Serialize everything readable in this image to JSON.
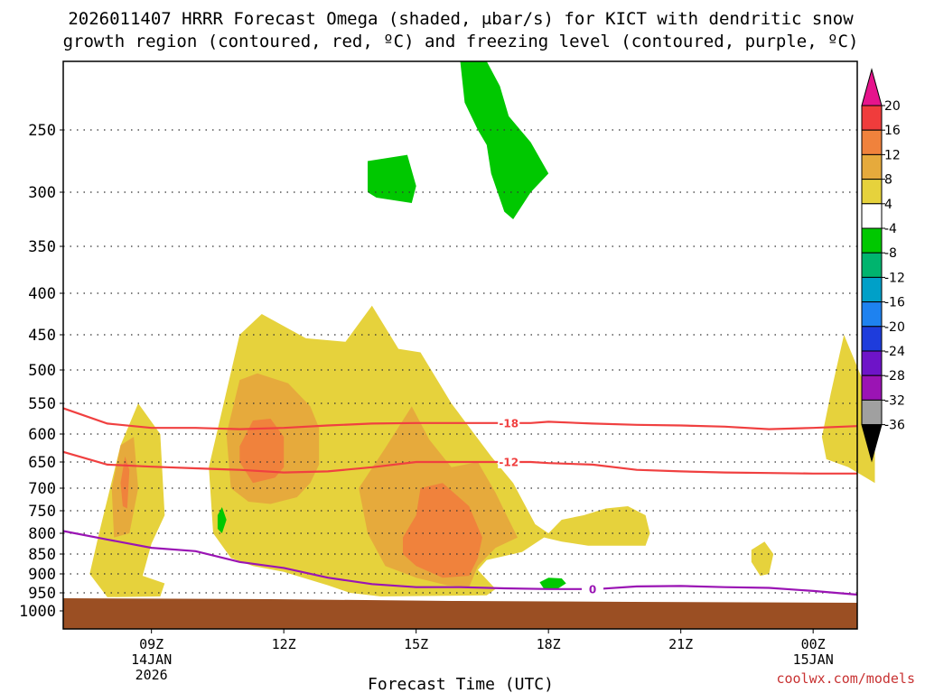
{
  "chart_data": {
    "type": "time-height cross section",
    "title_line1": "2026011407 HRRR Forecast Omega (shaded, μbar/s) for KICT with dendritic snow",
    "title_line2": "growth region (contoured, red, ºC) and freezing level (contoured, purple, ºC)",
    "xlabel": "Forecast Time (UTC)",
    "credit": "coolwx.com/models",
    "y_ticks": [
      250,
      300,
      350,
      400,
      450,
      500,
      550,
      600,
      650,
      700,
      750,
      800,
      850,
      900,
      950,
      1000
    ],
    "x_ticks": [
      {
        "t": 9,
        "label": "09Z",
        "sub1": "14JAN",
        "sub2": "2026"
      },
      {
        "t": 12,
        "label": "12Z",
        "sub1": "",
        "sub2": ""
      },
      {
        "t": 15,
        "label": "15Z",
        "sub1": "",
        "sub2": ""
      },
      {
        "t": 18,
        "label": "18Z",
        "sub1": "",
        "sub2": ""
      },
      {
        "t": 21,
        "label": "21Z",
        "sub1": "",
        "sub2": ""
      },
      {
        "t": 24,
        "label": "00Z",
        "sub1": "15JAN",
        "sub2": ""
      }
    ],
    "colorbar": {
      "labels": [
        "20",
        "16",
        "12",
        "8",
        "4",
        "-4",
        "-8",
        "-12",
        "-16",
        "-20",
        "-24",
        "-28",
        "-32",
        "-36"
      ],
      "colors": [
        "#f03c3c",
        "#f0823c",
        "#e6aa3c",
        "#e6d23c",
        "#ffffff",
        "#00c800",
        "#00b46e",
        "#00a0c8",
        "#1e82f0",
        "#1e3cdc",
        "#6e14c8",
        "#9b14b4",
        "#a0a0a0"
      ],
      "top_arrow_color": "#e6148c",
      "bottom_arrow_color": "#000000"
    },
    "contours": [
      {
        "label": "-18",
        "color": "#f04040",
        "points": [
          [
            7,
            558
          ],
          [
            8,
            583
          ],
          [
            9,
            590
          ],
          [
            10,
            590
          ],
          [
            11,
            592
          ],
          [
            12,
            590
          ],
          [
            13,
            586
          ],
          [
            14,
            583
          ],
          [
            15,
            582
          ],
          [
            16,
            582
          ],
          [
            16.6,
            582
          ],
          [
            17.6,
            582
          ],
          [
            18,
            580
          ],
          [
            19,
            583
          ],
          [
            20,
            585
          ],
          [
            21,
            586
          ],
          [
            22,
            588
          ],
          [
            23,
            592
          ],
          [
            24,
            590
          ],
          [
            25,
            587
          ]
        ]
      },
      {
        "label": "-12",
        "color": "#f04040",
        "points": [
          [
            7,
            632
          ],
          [
            8,
            655
          ],
          [
            9,
            659
          ],
          [
            10,
            662
          ],
          [
            11,
            665
          ],
          [
            12,
            670
          ],
          [
            13,
            668
          ],
          [
            14,
            660
          ],
          [
            15,
            650
          ],
          [
            16,
            650
          ],
          [
            16.6,
            650
          ],
          [
            17.6,
            650
          ],
          [
            18,
            652
          ],
          [
            19,
            655
          ],
          [
            20,
            665
          ],
          [
            21,
            668
          ],
          [
            22,
            670
          ],
          [
            23,
            671
          ],
          [
            24,
            672
          ],
          [
            25,
            672
          ]
        ]
      },
      {
        "label": "0",
        "color": "#9a14b4",
        "points": [
          [
            7,
            795
          ],
          [
            8,
            815
          ],
          [
            9,
            835
          ],
          [
            10,
            843
          ],
          [
            11,
            870
          ],
          [
            12,
            885
          ],
          [
            13,
            910
          ],
          [
            14,
            927
          ],
          [
            15,
            935
          ],
          [
            16,
            935
          ],
          [
            17,
            938
          ],
          [
            18,
            940
          ],
          [
            18.9,
            940
          ],
          [
            19.1,
            940
          ],
          [
            20,
            933
          ],
          [
            21,
            932
          ],
          [
            22,
            935
          ],
          [
            23,
            937
          ],
          [
            24,
            945
          ],
          [
            25,
            955
          ]
        ]
      }
    ],
    "omega_regions": [
      {
        "category": "4-8",
        "color": "#e6d23c",
        "points": [
          [
            7.8,
            805
          ],
          [
            8.3,
            620
          ],
          [
            8.7,
            550
          ],
          [
            9.2,
            600
          ],
          [
            9.3,
            760
          ],
          [
            9.0,
            825
          ],
          [
            8.8,
            905
          ],
          [
            9.3,
            925
          ],
          [
            9.2,
            960
          ],
          [
            8.0,
            962
          ],
          [
            7.6,
            900
          ]
        ]
      },
      {
        "category": "8-12",
        "color": "#e6aa3c",
        "points": [
          [
            8.1,
            700
          ],
          [
            8.3,
            620
          ],
          [
            8.6,
            605
          ],
          [
            8.7,
            700
          ],
          [
            8.5,
            800
          ],
          [
            8.15,
            810
          ]
        ]
      },
      {
        "category": "12-16",
        "color": "#f0823c",
        "points": [
          [
            8.3,
            690
          ],
          [
            8.4,
            640
          ],
          [
            8.5,
            665
          ],
          [
            8.45,
            745
          ],
          [
            8.35,
            740
          ]
        ]
      },
      {
        "category": "4-8",
        "color": "#e6d23c",
        "points": [
          [
            10.3,
            660
          ],
          [
            11.0,
            450
          ],
          [
            11.5,
            425
          ],
          [
            12.5,
            455
          ],
          [
            13.4,
            460
          ],
          [
            14.0,
            415
          ],
          [
            14.6,
            470
          ],
          [
            15.1,
            475
          ],
          [
            15.8,
            550
          ],
          [
            16.7,
            640
          ],
          [
            17.2,
            690
          ],
          [
            17.7,
            780
          ],
          [
            18.0,
            800
          ],
          [
            18.3,
            770
          ],
          [
            18.8,
            760
          ],
          [
            19.3,
            745
          ],
          [
            19.8,
            740
          ],
          [
            20.2,
            760
          ],
          [
            20.3,
            800
          ],
          [
            20.2,
            830
          ],
          [
            19.6,
            830
          ],
          [
            18.9,
            830
          ],
          [
            18.3,
            820
          ],
          [
            17.9,
            810
          ],
          [
            17.4,
            845
          ],
          [
            16.6,
            865
          ],
          [
            16.4,
            890
          ],
          [
            16.8,
            940
          ],
          [
            16.6,
            957
          ],
          [
            14.2,
            960
          ],
          [
            13.5,
            950
          ],
          [
            13.0,
            930
          ],
          [
            12.0,
            895
          ],
          [
            11.3,
            880
          ],
          [
            10.8,
            860
          ],
          [
            10.4,
            800
          ]
        ]
      },
      {
        "category": "8-12",
        "color": "#e6aa3c",
        "points": [
          [
            10.7,
            600
          ],
          [
            11.0,
            515
          ],
          [
            11.4,
            505
          ],
          [
            12.1,
            520
          ],
          [
            12.6,
            555
          ],
          [
            12.8,
            590
          ],
          [
            12.8,
            655
          ],
          [
            12.6,
            690
          ],
          [
            12.3,
            720
          ],
          [
            11.7,
            735
          ],
          [
            11.2,
            730
          ],
          [
            10.8,
            700
          ]
        ]
      },
      {
        "category": "12-16",
        "color": "#f0823c",
        "points": [
          [
            11.0,
            622
          ],
          [
            11.3,
            578
          ],
          [
            11.7,
            575
          ],
          [
            12.0,
            605
          ],
          [
            12.0,
            660
          ],
          [
            11.8,
            680
          ],
          [
            11.3,
            690
          ],
          [
            11.0,
            650
          ]
        ]
      },
      {
        "category": "8-12",
        "color": "#e6aa3c",
        "points": [
          [
            13.7,
            700
          ],
          [
            14.3,
            625
          ],
          [
            14.9,
            555
          ],
          [
            15.3,
            610
          ],
          [
            15.8,
            660
          ],
          [
            16.4,
            650
          ],
          [
            16.8,
            710
          ],
          [
            17.1,
            770
          ],
          [
            17.3,
            810
          ],
          [
            16.8,
            835
          ],
          [
            16.4,
            880
          ],
          [
            16.2,
            935
          ],
          [
            15.7,
            930
          ],
          [
            15.0,
            910
          ],
          [
            14.3,
            880
          ],
          [
            13.9,
            800
          ]
        ]
      },
      {
        "category": "12-16",
        "color": "#f0823c",
        "points": [
          [
            14.7,
            810
          ],
          [
            15.0,
            760
          ],
          [
            15.1,
            700
          ],
          [
            15.6,
            690
          ],
          [
            16.2,
            740
          ],
          [
            16.5,
            810
          ],
          [
            16.4,
            860
          ],
          [
            16.2,
            905
          ],
          [
            15.6,
            910
          ],
          [
            15.0,
            880
          ],
          [
            14.7,
            850
          ]
        ]
      },
      {
        "category": "4-8",
        "color": "#e6d23c",
        "points": [
          [
            10.5,
            770
          ],
          [
            10.6,
            755
          ],
          [
            10.65,
            790
          ],
          [
            10.55,
            810
          ]
        ]
      },
      {
        "category": "4-8",
        "color": "#e6d23c",
        "points": [
          [
            22.6,
            840
          ],
          [
            22.9,
            820
          ],
          [
            23.1,
            850
          ],
          [
            23.0,
            900
          ],
          [
            22.8,
            905
          ],
          [
            22.6,
            870
          ]
        ]
      },
      {
        "category": "4-8",
        "color": "#e6d23c",
        "points": [
          [
            24.2,
            605
          ],
          [
            24.4,
            535
          ],
          [
            24.7,
            450
          ],
          [
            25.4,
            560
          ],
          [
            25.4,
            690
          ],
          [
            24.8,
            660
          ],
          [
            24.3,
            645
          ]
        ]
      },
      {
        "category": "-4 to -8",
        "color": "#00c800",
        "points": [
          [
            10.5,
            760
          ],
          [
            10.6,
            742
          ],
          [
            10.7,
            770
          ],
          [
            10.6,
            800
          ],
          [
            10.5,
            790
          ]
        ]
      },
      {
        "category": "-4 to -8",
        "color": "#00c800",
        "points": [
          [
            17.8,
            922
          ],
          [
            18.0,
            910
          ],
          [
            18.3,
            912
          ],
          [
            18.4,
            925
          ],
          [
            18.2,
            940
          ],
          [
            17.9,
            940
          ]
        ]
      },
      {
        "category": "-4 to -8",
        "color": "#00c800",
        "points": [
          [
            13.9,
            275
          ],
          [
            14.8,
            270
          ],
          [
            15.0,
            295
          ],
          [
            14.9,
            310
          ],
          [
            14.1,
            305
          ],
          [
            13.9,
            300
          ]
        ]
      },
      {
        "category": "-4 to -8",
        "color": "#00c800",
        "points": [
          [
            16.0,
            200
          ],
          [
            16.6,
            200
          ],
          [
            16.9,
            218
          ],
          [
            17.1,
            240
          ],
          [
            17.6,
            260
          ],
          [
            18.0,
            285
          ],
          [
            17.6,
            300
          ],
          [
            17.2,
            325
          ],
          [
            17.0,
            318
          ],
          [
            16.7,
            285
          ],
          [
            16.6,
            262
          ],
          [
            16.4,
            250
          ],
          [
            16.1,
            230
          ]
        ]
      }
    ]
  }
}
